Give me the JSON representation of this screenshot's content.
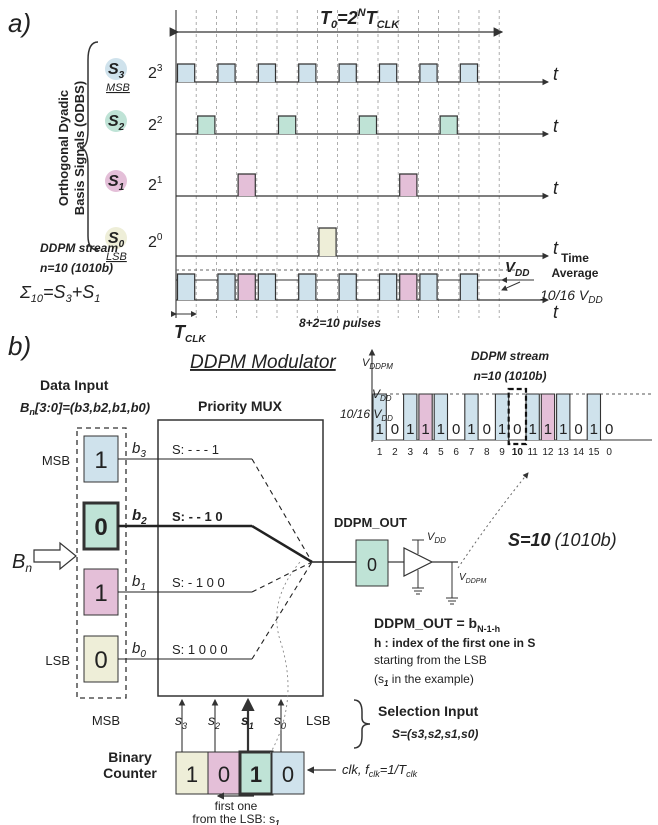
{
  "colors": {
    "s3": "#cfe2ec",
    "s2": "#bfe3d6",
    "s1": "#e4bfd8",
    "s0": "#eeeed8",
    "line": "#333333",
    "grid": "#9a9a9a"
  },
  "part_a": {
    "label": "a)",
    "period_label_T0": "T",
    "period_label_sub0": "0",
    "period_label_eq": "=2",
    "period_label_supN": "N",
    "period_label_T": "T",
    "period_label_subclk": "CLK",
    "vertical_title_line1": "Orthogonal Dyadic",
    "vertical_title_line2": "Basis Signals (ODBS)",
    "rows": [
      {
        "signal": "S",
        "sub": "3",
        "tag": "MSB",
        "weight": "2",
        "exp": "3",
        "axis": "t",
        "pulse_slots": [
          0,
          2,
          4,
          6,
          8,
          10,
          12,
          14
        ]
      },
      {
        "signal": "S",
        "sub": "2",
        "tag": "",
        "weight": "2",
        "exp": "2",
        "axis": "t",
        "pulse_slots": [
          1,
          5,
          9,
          13
        ]
      },
      {
        "signal": "S",
        "sub": "1",
        "tag": "",
        "weight": "2",
        "exp": "1",
        "axis": "t",
        "pulse_slots": [
          3,
          11
        ]
      },
      {
        "signal": "S",
        "sub": "0",
        "tag": "LSB",
        "weight": "2",
        "exp": "0",
        "axis": "t",
        "pulse_slots": [
          7
        ]
      }
    ],
    "ddpm_stream_label": "DDPM stream",
    "n_label": "n=10 (1010b)",
    "sum_label_sigma": "Σ",
    "sum_label_sub": "10",
    "sum_label_eq": "=S",
    "sum_label_sub3": "3",
    "sum_label_plus": "+S",
    "sum_label_sub1": "1",
    "vdd_label": "V",
    "vdd_sub": "DD",
    "time_average_line1": "Time",
    "time_average_line2": "Average",
    "time_average_value": "10/16 V",
    "time_average_sub": "DD",
    "tclk_label": "T",
    "tclk_sub": "CLK",
    "pulses_note": "8+2=10 pulses",
    "stream_axis": "t",
    "stream_slots": [
      {
        "slot": 0,
        "src": "s3"
      },
      {
        "slot": 2,
        "src": "s3"
      },
      {
        "slot": 3,
        "src": "s1"
      },
      {
        "slot": 4,
        "src": "s3"
      },
      {
        "slot": 6,
        "src": "s3"
      },
      {
        "slot": 8,
        "src": "s3"
      },
      {
        "slot": 10,
        "src": "s3"
      },
      {
        "slot": 11,
        "src": "s1"
      },
      {
        "slot": 12,
        "src": "s3"
      },
      {
        "slot": 14,
        "src": "s3"
      }
    ]
  },
  "part_b": {
    "label": "b)",
    "modulator_title": "DDPM Modulator",
    "data_input_title": "Data Input",
    "data_input_formula": "B",
    "data_input_formula_sub": "n",
    "data_input_formula_rest": "[3:0]=(b",
    "data_input_formula_tail": "3,b2,b1,b0)",
    "bn_label": "B",
    "bn_sub": "n",
    "bits": [
      {
        "value": "1",
        "tag": "MSB",
        "name": "b",
        "sub": "3",
        "color": "s3",
        "bold": false,
        "selector": "S: - - - 1"
      },
      {
        "value": "0",
        "tag": "",
        "name": "b",
        "sub": "2",
        "color": "s2",
        "bold": true,
        "selector": "S: - - 1 0"
      },
      {
        "value": "1",
        "tag": "",
        "name": "b",
        "sub": "1",
        "color": "s1",
        "bold": false,
        "selector": "S: - 1 0 0"
      },
      {
        "value": "0",
        "tag": "LSB",
        "name": "b",
        "sub": "0",
        "color": "s0",
        "bold": false,
        "selector": "S: 1 0 0 0"
      }
    ],
    "mux_title": "Priority MUX",
    "ddpm_out_label": "DDPM_OUT",
    "ddpm_out_value": "0",
    "buffer_vdd": "V",
    "buffer_vdd_sub": "DD",
    "buffer_vddpm": "V",
    "buffer_vddpm_sub": "DDPM",
    "s_value_label": "S=10",
    "s_value_binary": "(1010b)",
    "eq_title": "DDPM_OUT = b",
    "eq_title_sub": "N-1-h",
    "eq_line1": "h : index of the first one in S",
    "eq_line2": "starting from the LSB",
    "eq_line3": "(s",
    "eq_line3_sub": "1",
    "eq_line3_rest": " in the example)",
    "select_labels": {
      "msb": "MSB",
      "lsb": "LSB",
      "s": [
        "s",
        "s",
        "s",
        "s"
      ],
      "subs": [
        "3",
        "2",
        "1",
        "0"
      ]
    },
    "selection_title": "Selection Input",
    "selection_formula": "S=(s3,s2,s1,s0)",
    "counter_title_line1": "Binary",
    "counter_title_line2": "Counter",
    "counter_bits": [
      {
        "value": "1",
        "color": "s0"
      },
      {
        "value": "0",
        "color": "s1"
      },
      {
        "value": "1",
        "color": "s2",
        "bold": true
      },
      {
        "value": "0",
        "color": "s3"
      }
    ],
    "clk_label": "clk, f",
    "clk_sub": "clk",
    "clk_rest": "=1/T",
    "clk_rest_sub": "clk",
    "first_one_line1": "first one",
    "first_one_line2": "from the LSB: s",
    "first_one_sub": "1",
    "stream_plot": {
      "title": "DDPM stream",
      "subtitle": "n=10 (1010b)",
      "y_top": "V",
      "y_top_sub": "DDPM",
      "y_vdd": "V",
      "y_vdd_sub": "DD",
      "y_avg": "10/16 V",
      "y_avg_sub": "DD",
      "bits": [
        "1",
        "0",
        "1",
        "1",
        "1",
        "0",
        "1",
        "0",
        "1",
        "0",
        "1",
        "1",
        "1",
        "0",
        "1",
        "0"
      ],
      "indices": [
        "1",
        "2",
        "3",
        "4",
        "5",
        "6",
        "7",
        "8",
        "9",
        "10",
        "11",
        "12",
        "13",
        "14",
        "15",
        "0"
      ],
      "highlight_index": "10"
    }
  }
}
